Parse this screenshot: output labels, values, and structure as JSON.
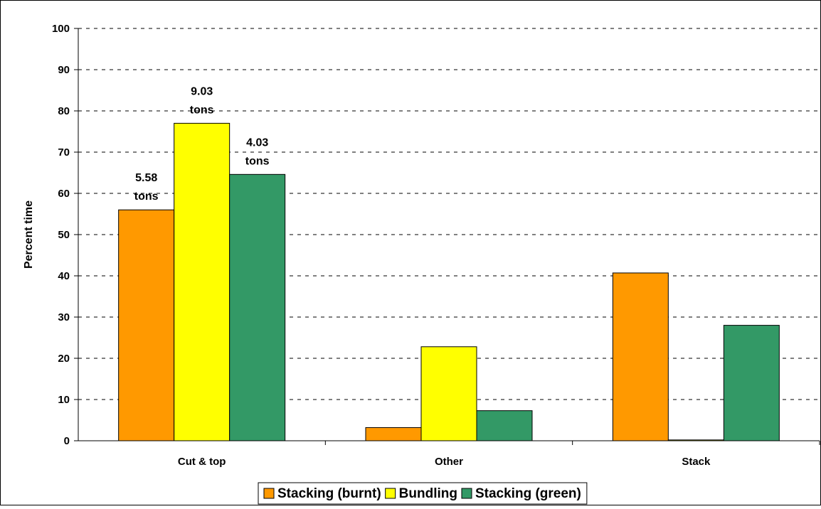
{
  "chart_data": {
    "type": "bar",
    "title": "",
    "xlabel": "",
    "ylabel": "Percent time",
    "ylim": [
      0,
      100
    ],
    "yticks": [
      0,
      10,
      20,
      30,
      40,
      50,
      60,
      70,
      80,
      90,
      100
    ],
    "grid": true,
    "legend_position": "bottom",
    "categories": [
      "Cut & top",
      "Other",
      "Stack"
    ],
    "series": [
      {
        "name": "Stacking (burnt)",
        "color": "#FF9900",
        "values": [
          56,
          3.2,
          40.7
        ]
      },
      {
        "name": "Bundling",
        "color": "#FFFF00",
        "values": [
          77,
          22.8,
          0.2
        ]
      },
      {
        "name": "Stacking (green)",
        "color": "#339966",
        "values": [
          64.6,
          7.3,
          28
        ]
      }
    ],
    "annotations": [
      {
        "series": 0,
        "category": 0,
        "lines": [
          "5.58",
          "tons"
        ]
      },
      {
        "series": 1,
        "category": 0,
        "lines": [
          "9.03",
          "tons"
        ]
      },
      {
        "series": 2,
        "category": 0,
        "lines": [
          "4.03",
          "tons"
        ]
      }
    ]
  }
}
